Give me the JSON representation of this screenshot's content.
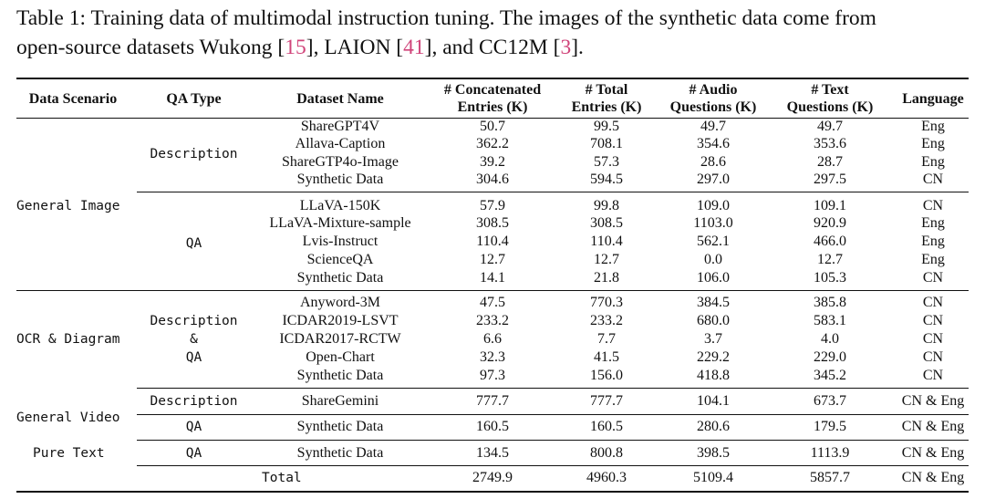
{
  "caption": {
    "line1": "Table 1: Training data of multimodal instruction tuning. The images of the synthetic data come from",
    "line2_prefix": "open-source datasets Wukong [",
    "cite1": "15",
    "line2_mid1": "], LAION [",
    "cite2": "41",
    "line2_mid2": "], and CC12M [",
    "cite3": "3",
    "line2_suffix": "]."
  },
  "header": {
    "scenario": "Data Scenario",
    "qa_type": "QA Type",
    "dataset": "Dataset Name",
    "concat_1": "# Concatenated",
    "concat_2": "Entries (K)",
    "total_1": "# Total",
    "total_2": "Entries (K)",
    "audio_1": "# Audio",
    "audio_2": "Questions (K)",
    "text_1": "# Text",
    "text_2": "Questions (K)",
    "language": "Language"
  },
  "scenarios": {
    "general_image": "General Image",
    "ocr_1": "OCR & Diagram",
    "general_video": "General Video",
    "pure_text": "Pure Text"
  },
  "qa_types": {
    "description": "Description",
    "qa": "QA",
    "amp": "&"
  },
  "rows": [
    {
      "name": "ShareGPT4V",
      "concat": "50.7",
      "total": "99.5",
      "audio": "49.7",
      "text": "49.7",
      "lang": "Eng"
    },
    {
      "name": "Allava-Caption",
      "concat": "362.2",
      "total": "708.1",
      "audio": "354.6",
      "text": "353.6",
      "lang": "Eng"
    },
    {
      "name": "ShareGTP4o-Image",
      "concat": "39.2",
      "total": "57.3",
      "audio": "28.6",
      "text": "28.7",
      "lang": "Eng"
    },
    {
      "name": "Synthetic Data",
      "concat": "304.6",
      "total": "594.5",
      "audio": "297.0",
      "text": "297.5",
      "lang": "CN"
    },
    {
      "name": "LLaVA-150K",
      "concat": "57.9",
      "total": "99.8",
      "audio": "109.0",
      "text": "109.1",
      "lang": "CN"
    },
    {
      "name": "LLaVA-Mixture-sample",
      "concat": "308.5",
      "total": "308.5",
      "audio": "1103.0",
      "text": "920.9",
      "lang": "Eng"
    },
    {
      "name": "Lvis-Instruct",
      "concat": "110.4",
      "total": "110.4",
      "audio": "562.1",
      "text": "466.0",
      "lang": "Eng"
    },
    {
      "name": "ScienceQA",
      "concat": "12.7",
      "total": "12.7",
      "audio": "0.0",
      "text": "12.7",
      "lang": "Eng"
    },
    {
      "name": "Synthetic Data",
      "concat": "14.1",
      "total": "21.8",
      "audio": "106.0",
      "text": "105.3",
      "lang": "CN"
    },
    {
      "name": "Anyword-3M",
      "concat": "47.5",
      "total": "770.3",
      "audio": "384.5",
      "text": "385.8",
      "lang": "CN"
    },
    {
      "name": "ICDAR2019-LSVT",
      "concat": "233.2",
      "total": "233.2",
      "audio": "680.0",
      "text": "583.1",
      "lang": "CN"
    },
    {
      "name": "ICDAR2017-RCTW",
      "concat": "6.6",
      "total": "7.7",
      "audio": "3.7",
      "text": "4.0",
      "lang": "CN"
    },
    {
      "name": "Open-Chart",
      "concat": "32.3",
      "total": "41.5",
      "audio": "229.2",
      "text": "229.0",
      "lang": "CN"
    },
    {
      "name": "Synthetic Data",
      "concat": "97.3",
      "total": "156.0",
      "audio": "418.8",
      "text": "345.2",
      "lang": "CN"
    },
    {
      "name": "ShareGemini",
      "concat": "777.7",
      "total": "777.7",
      "audio": "104.1",
      "text": "673.7",
      "lang": "CN & Eng"
    },
    {
      "name": "Synthetic Data",
      "concat": "160.5",
      "total": "160.5",
      "audio": "280.6",
      "text": "179.5",
      "lang": "CN & Eng"
    },
    {
      "name": "Synthetic Data",
      "concat": "134.5",
      "total": "800.8",
      "audio": "398.5",
      "text": "1113.9",
      "lang": "CN & Eng"
    }
  ],
  "total_row": {
    "label": "Total",
    "concat": "2749.9",
    "total": "4960.3",
    "audio": "5109.4",
    "text": "5857.7",
    "lang": "CN & Eng"
  }
}
